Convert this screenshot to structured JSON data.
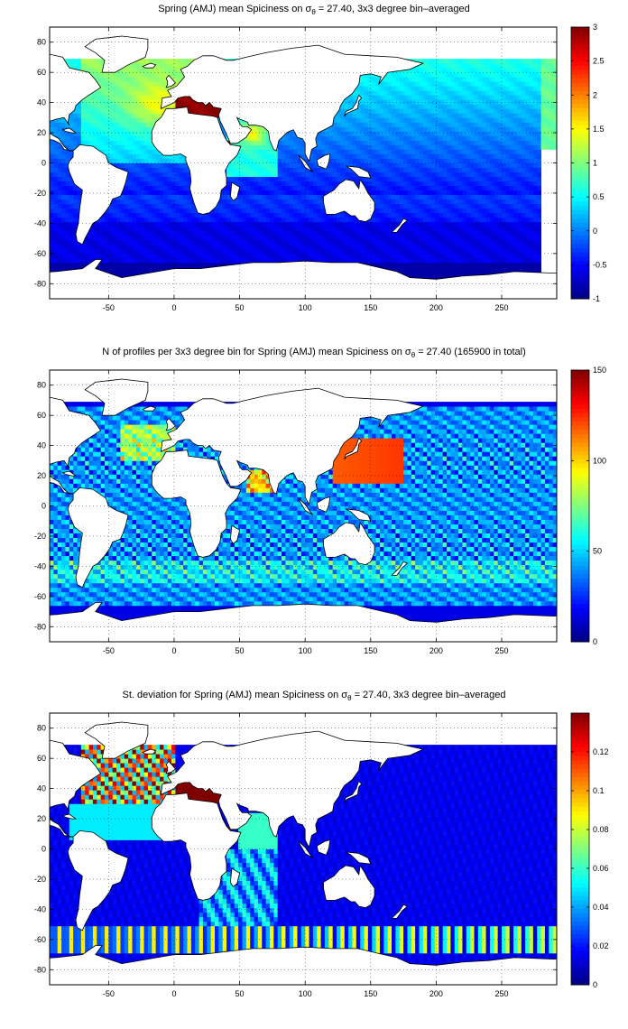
{
  "chart_data": [
    {
      "type": "heatmap",
      "title_prefix": "Spring (AMJ) mean Spiciness on ",
      "title_symbol": "σ",
      "title_subscript": "θ",
      "title_suffix": " = 27.40, 3x3 degree bin–averaged",
      "x_ticks": [
        "-50",
        "0",
        "50",
        "100",
        "150",
        "200",
        "250"
      ],
      "x_tick_values": [
        -50,
        0,
        50,
        100,
        150,
        200,
        250
      ],
      "y_ticks": [
        "80",
        "60",
        "40",
        "20",
        "0",
        "-20",
        "-40",
        "-60",
        "-80"
      ],
      "y_tick_values": [
        80,
        60,
        40,
        20,
        0,
        -20,
        -40,
        -60,
        -80
      ],
      "xlim": [
        -95,
        292
      ],
      "ylim": [
        -90,
        90
      ],
      "grid": true,
      "colorbar": {
        "min": -1,
        "max": 3,
        "ticks": [
          "3",
          "2.5",
          "2",
          "1.5",
          "1",
          "0.5",
          "0",
          "-0.5",
          "-1"
        ],
        "tick_values": [
          3,
          2.5,
          2,
          1.5,
          1,
          0.5,
          0,
          -0.5,
          -1
        ]
      },
      "colormap": "jet"
    },
    {
      "type": "heatmap",
      "title_prefix": "N of profiles per 3x3 degree bin for Spring (AMJ) mean Spiciness on ",
      "title_symbol": "σ",
      "title_subscript": "θ",
      "title_suffix": " = 27.40 (165900 in total)",
      "x_ticks": [
        "-50",
        "0",
        "50",
        "100",
        "150",
        "200",
        "250"
      ],
      "x_tick_values": [
        -50,
        0,
        50,
        100,
        150,
        200,
        250
      ],
      "y_ticks": [
        "80",
        "60",
        "40",
        "20",
        "0",
        "-20",
        "-40",
        "-60",
        "-80"
      ],
      "y_tick_values": [
        80,
        60,
        40,
        20,
        0,
        -20,
        -40,
        -60,
        -80
      ],
      "xlim": [
        -95,
        292
      ],
      "ylim": [
        -90,
        90
      ],
      "grid": true,
      "colorbar": {
        "min": 0,
        "max": 150,
        "ticks": [
          "150",
          "100",
          "50",
          "0"
        ],
        "tick_values": [
          150,
          100,
          50,
          0
        ]
      },
      "colormap": "jet"
    },
    {
      "type": "heatmap",
      "title_prefix": "St. deviation for Spring (AMJ) mean Spiciness on ",
      "title_symbol": "σ",
      "title_subscript": "θ",
      "title_suffix": " = 27.40, 3x3 degree bin–averaged",
      "x_ticks": [
        "-50",
        "0",
        "50",
        "100",
        "150",
        "200",
        "250"
      ],
      "x_tick_values": [
        -50,
        0,
        50,
        100,
        150,
        200,
        250
      ],
      "y_ticks": [
        "80",
        "60",
        "40",
        "20",
        "0",
        "-20",
        "-40",
        "-60",
        "-80"
      ],
      "y_tick_values": [
        80,
        60,
        40,
        20,
        0,
        -20,
        -40,
        -60,
        -80
      ],
      "xlim": [
        -95,
        292
      ],
      "ylim": [
        -90,
        90
      ],
      "grid": true,
      "colorbar": {
        "min": 0,
        "max": 0.14,
        "ticks": [
          "0.12",
          "0.1",
          "0.08",
          "0.06",
          "0.04",
          "0.02",
          "0"
        ],
        "tick_values": [
          0.12,
          0.1,
          0.08,
          0.06,
          0.04,
          0.02,
          0
        ]
      },
      "colormap": "jet"
    }
  ]
}
